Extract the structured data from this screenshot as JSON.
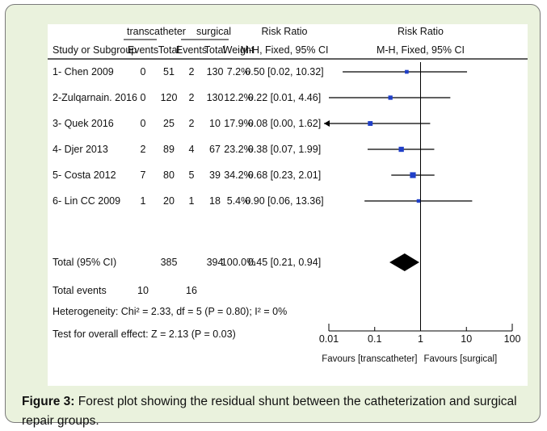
{
  "chart_data": {
    "type": "forest",
    "headers": {
      "group1": "transcatheter",
      "group2": "surgical",
      "study": "Study or Subgroup",
      "events": "Events",
      "total": "Total",
      "weight": "Weight",
      "effect_title": "Risk Ratio",
      "effect_method": "M-H, Fixed, 95% CI"
    },
    "studies": [
      {
        "name": "1- Chen 2009",
        "e1": "0",
        "t1": "51",
        "e2": "2",
        "t2": "130",
        "weight": "7.2%",
        "ci_text": "0.50 [0.02, 10.32]",
        "rr": 0.5,
        "lo": 0.02,
        "hi": 10.32
      },
      {
        "name": "2-Zulqarnain. 2016",
        "e1": "0",
        "t1": "120",
        "e2": "2",
        "t2": "130",
        "weight": "12.2%",
        "ci_text": "0.22 [0.01, 4.46]",
        "rr": 0.22,
        "lo": 0.01,
        "hi": 4.46
      },
      {
        "name": "3- Quek 2016",
        "e1": "0",
        "t1": "25",
        "e2": "2",
        "t2": "10",
        "weight": "17.9%",
        "ci_text": "0.08 [0.00, 1.62]",
        "rr": 0.08,
        "lo": 0.004,
        "hi": 1.62,
        "arrow_left": true
      },
      {
        "name": "4- Djer 2013",
        "e1": "2",
        "t1": "89",
        "e2": "4",
        "t2": "67",
        "weight": "23.2%",
        "ci_text": "0.38 [0.07, 1.99]",
        "rr": 0.38,
        "lo": 0.07,
        "hi": 1.99
      },
      {
        "name": "5- Costa 2012",
        "e1": "7",
        "t1": "80",
        "e2": "5",
        "t2": "39",
        "weight": "34.2%",
        "ci_text": "0.68 [0.23, 2.01]",
        "rr": 0.68,
        "lo": 0.23,
        "hi": 2.01
      },
      {
        "name": "6- Lin CC 2009",
        "e1": "1",
        "t1": "20",
        "e2": "1",
        "t2": "18",
        "weight": "5.4%",
        "ci_text": "0.90 [0.06, 13.36]",
        "rr": 0.9,
        "lo": 0.06,
        "hi": 13.36
      }
    ],
    "total": {
      "label": "Total (95% CI)",
      "t1": "385",
      "t2": "394",
      "weight": "100.0%",
      "ci_text": "0.45 [0.21, 0.94]",
      "rr": 0.45,
      "lo": 0.21,
      "hi": 0.94
    },
    "total_events": {
      "label": "Total events",
      "e1": "10",
      "e2": "16"
    },
    "heterogeneity": "Heterogeneity: Chi² = 2.33, df = 5 (P = 0.80); I² = 0%",
    "overall_effect": "Test for overall effect: Z = 2.13 (P = 0.03)",
    "axis": {
      "scale": "log",
      "ticks": [
        0.01,
        0.1,
        1,
        10,
        100
      ],
      "tick_labels": [
        "0.01",
        "0.1",
        "1",
        "10",
        "100"
      ],
      "favours_left": "Favours [transcatheter]",
      "favours_right": "Favours [surgical]"
    },
    "colors": {
      "marker": "#1f3fc8",
      "line": "#000000"
    }
  },
  "caption": {
    "label": "Figure 3:",
    "text": " Forest plot showing the residual shunt between the catheterization and surgical repair groups."
  }
}
